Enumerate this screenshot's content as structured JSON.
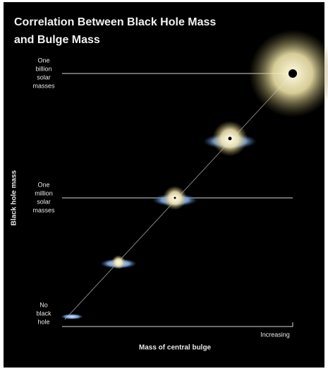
{
  "title": [
    "Correlation Between Black Hole Mass",
    "and Bulge Mass"
  ],
  "y_labels": [
    {
      "lines": [
        "One",
        "billion",
        "solar",
        "masses"
      ]
    },
    {
      "lines": [
        "One",
        "million",
        "solar",
        "masses"
      ]
    },
    {
      "lines": [
        "No",
        "black",
        "hole"
      ]
    }
  ],
  "y_axis_label": "Black hole mass",
  "x_axis_label": "Mass of central bulge",
  "x_end_label": "Increasing"
}
